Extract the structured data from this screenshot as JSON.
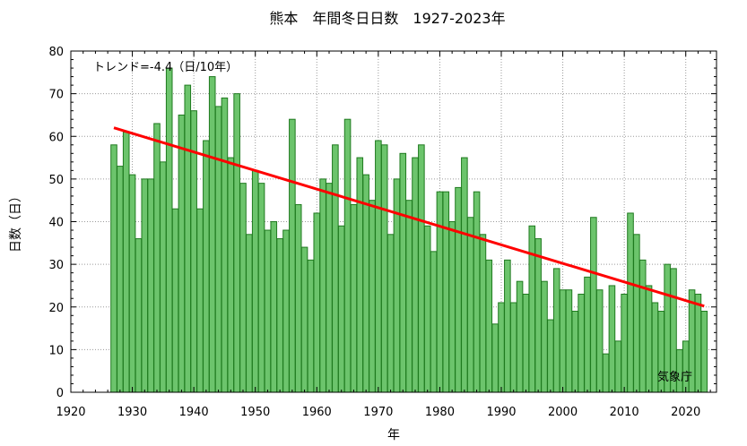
{
  "chart_data": {
    "type": "bar",
    "title": "熊本　年間冬日日数　1927-2023年",
    "xlabel": "年",
    "ylabel": "日数（日）",
    "trend_label": "トレンド=-4.4（日/10年）",
    "source": "気象庁",
    "xlim": [
      1920,
      2025
    ],
    "ylim": [
      0,
      80
    ],
    "xticks": [
      "1920",
      "1930",
      "1940",
      "1950",
      "1960",
      "1970",
      "1980",
      "1990",
      "2000",
      "2010",
      "2020"
    ],
    "yticks": [
      "0",
      "10",
      "20",
      "30",
      "40",
      "50",
      "60",
      "70",
      "80"
    ],
    "grid": true,
    "colors": {
      "bar_fill": "#6cc46c",
      "bar_edge": "#1f7a1f",
      "trend": "#ff0000"
    },
    "x": [
      1927,
      1928,
      1929,
      1930,
      1931,
      1932,
      1933,
      1934,
      1935,
      1936,
      1937,
      1938,
      1939,
      1940,
      1941,
      1942,
      1943,
      1944,
      1945,
      1946,
      1947,
      1948,
      1949,
      1950,
      1951,
      1952,
      1953,
      1954,
      1955,
      1956,
      1957,
      1958,
      1959,
      1960,
      1961,
      1962,
      1963,
      1964,
      1965,
      1966,
      1967,
      1968,
      1969,
      1970,
      1971,
      1972,
      1973,
      1974,
      1975,
      1976,
      1977,
      1978,
      1979,
      1980,
      1981,
      1982,
      1983,
      1984,
      1985,
      1986,
      1987,
      1988,
      1989,
      1990,
      1991,
      1992,
      1993,
      1994,
      1995,
      1996,
      1997,
      1998,
      1999,
      2000,
      2001,
      2002,
      2003,
      2004,
      2005,
      2006,
      2007,
      2008,
      2009,
      2010,
      2011,
      2012,
      2013,
      2014,
      2015,
      2016,
      2017,
      2018,
      2019,
      2020,
      2021,
      2022,
      2023
    ],
    "values": [
      58,
      53,
      61,
      51,
      36,
      50,
      50,
      63,
      54,
      76,
      43,
      65,
      72,
      66,
      43,
      59,
      74,
      67,
      69,
      55,
      70,
      49,
      37,
      52,
      49,
      38,
      40,
      36,
      38,
      64,
      44,
      34,
      31,
      42,
      50,
      49,
      58,
      39,
      64,
      44,
      55,
      51,
      45,
      59,
      58,
      37,
      50,
      56,
      45,
      55,
      58,
      39,
      33,
      47,
      47,
      40,
      48,
      55,
      41,
      47,
      37,
      31,
      16,
      21,
      31,
      21,
      26,
      23,
      39,
      36,
      26,
      17,
      29,
      24,
      24,
      19,
      23,
      27,
      41,
      24,
      9,
      25,
      12,
      23,
      42,
      37,
      31,
      25,
      21,
      19,
      30,
      29,
      10,
      12,
      24,
      23,
      19
    ],
    "trend": {
      "x": [
        1927,
        2023
      ],
      "y": [
        62.0,
        20.2
      ]
    }
  }
}
